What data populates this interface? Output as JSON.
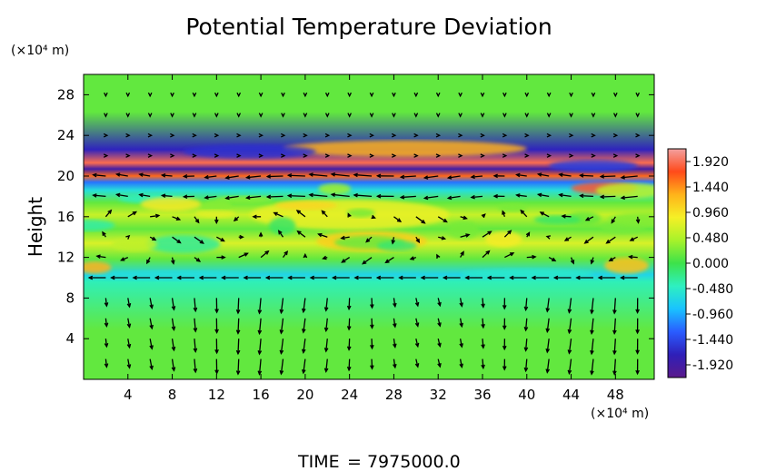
{
  "chart_data": {
    "type": "heatmap",
    "title": "Potential Temperature Deviation",
    "ylabel": "Height",
    "x_unit": "(×10⁴ m)",
    "y_unit": "(×10⁴ m)",
    "xlim": [
      0,
      51.5
    ],
    "ylim": [
      0,
      30
    ],
    "x_ticks": [
      "4",
      "8",
      "12",
      "16",
      "20",
      "24",
      "28",
      "32",
      "36",
      "40",
      "44",
      "48"
    ],
    "y_ticks": [
      "4",
      "8",
      "12",
      "16",
      "20",
      "24",
      "28"
    ],
    "colorbar": {
      "range": [
        -2.16,
        2.16
      ],
      "labels": [
        "1.920",
        "1.440",
        "0.960",
        "0.480",
        "0.000",
        "-0.480",
        "-0.960",
        "-1.440",
        "-1.920"
      ],
      "colors": [
        "#5a1a8c",
        "#2f1fb8",
        "#2a5cff",
        "#19c3ff",
        "#2ef0c0",
        "#3de24a",
        "#a8f22a",
        "#f5f026",
        "#ffb31a",
        "#ff4a1a",
        "#f2a0a0"
      ]
    },
    "background_value": 0.15,
    "bands": [
      {
        "y": 22.6,
        "value": -1.7
      },
      {
        "y": 21.3,
        "value": 1.9
      },
      {
        "y": 20.7,
        "value": -1.9
      },
      {
        "y": 20.0,
        "value": 1.6
      },
      {
        "y": 19.4,
        "value": -1.2
      },
      {
        "y": 18.6,
        "value": -0.6
      },
      {
        "y": 16.2,
        "value": 0.6
      },
      {
        "y": 13.4,
        "value": 0.7
      },
      {
        "y": 10.3,
        "value": -0.7
      },
      {
        "y": 9.6,
        "value": -0.4
      }
    ],
    "hot_patch": {
      "x": 29,
      "y": 22.7,
      "value": 1.3
    },
    "wind_vectors": "sampled field; strongest along y≈10 and y≈18 (westward), variable 12–18"
  },
  "footer": {
    "time_label": "TIME",
    "time_value": "=  7975000.0"
  }
}
